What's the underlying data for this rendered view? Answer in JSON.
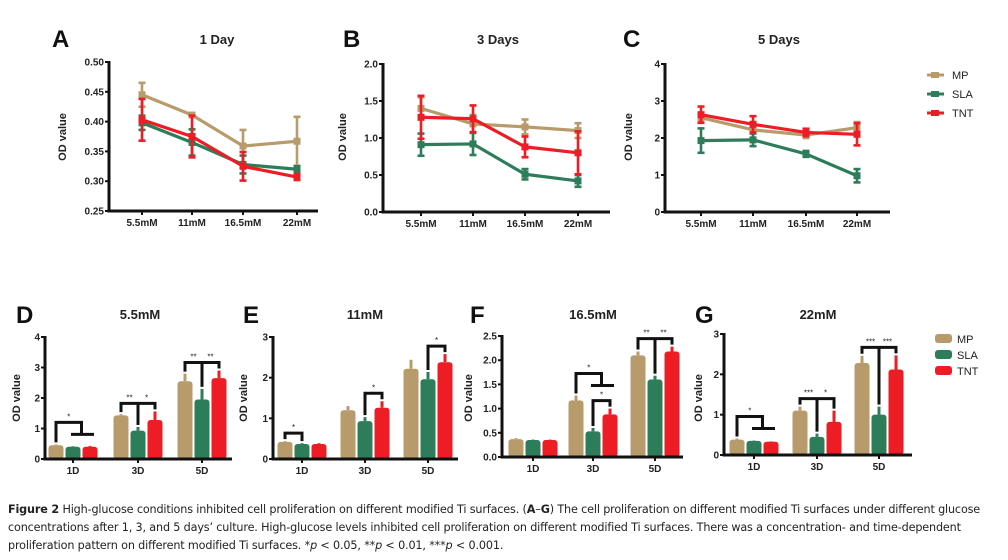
{
  "colors": {
    "MP": "#b89b6a",
    "SLA": "#2e7d5a",
    "TNT": "#ee1c24",
    "axis": "#111111"
  },
  "legend_line": {
    "items": [
      "MP",
      "SLA",
      "TNT"
    ]
  },
  "legend_bar": {
    "items": [
      "MP",
      "SLA",
      "TNT"
    ]
  },
  "caption": {
    "label": "Figure 2",
    "text1": " High-glucose conditions inhibited cell proliferation on different modified Ti surfaces. (",
    "range_bold_a": "A",
    "dash": "–",
    "range_bold_g": "G",
    "text2": ") The cell proliferation on different modified Ti surfaces under different glucose concentrations after 1, 3, and 5 days’ culture. High-glucose levels inhibited cell proliferation on different modified Ti surfaces. There was a concentration- and time-dependent proliferation pattern on different modified Ti surfaces. ",
    "p1_stars": "*",
    "p1_rest": " < 0.05, ",
    "p2_stars": "**",
    "p2_rest": " < 0.01, ",
    "p3_stars": "***",
    "p3_rest": " < 0.001.",
    "p_symbol": "p"
  },
  "chart_data": [
    {
      "panel": "A",
      "type": "line",
      "title": "1 Day",
      "xlabel": "",
      "ylabel": "OD value",
      "categories": [
        "5.5mM",
        "11mM",
        "16.5mM",
        "22mM"
      ],
      "ylim": [
        0.25,
        0.5
      ],
      "yticks": [
        "0.25",
        "0.30",
        "0.35",
        "0.40",
        "0.45",
        "0.50"
      ],
      "ytick_values": [
        0.25,
        0.3,
        0.35,
        0.4,
        0.45,
        0.5
      ],
      "legend": "right",
      "series": [
        {
          "name": "MP",
          "values": [
            0.445,
            0.411,
            0.359,
            0.367
          ],
          "err": [
            0.02,
            0.003,
            0.027,
            0.041
          ]
        },
        {
          "name": "SLA",
          "values": [
            0.398,
            0.365,
            0.328,
            0.32
          ],
          "err": [
            0.012,
            0.022,
            0.015,
            0.005
          ]
        },
        {
          "name": "TNT",
          "values": [
            0.403,
            0.375,
            0.325,
            0.307
          ],
          "err": [
            0.035,
            0.035,
            0.024,
            0.005
          ]
        }
      ]
    },
    {
      "panel": "B",
      "type": "line",
      "title": "3 Days",
      "xlabel": "",
      "ylabel": "OD value",
      "categories": [
        "5.5mM",
        "11mM",
        "16.5mM",
        "22mM"
      ],
      "ylim": [
        0.0,
        2.0
      ],
      "yticks": [
        "0.0",
        "0.5",
        "1.0",
        "1.5",
        "2.0"
      ],
      "ytick_values": [
        0.0,
        0.5,
        1.0,
        1.5,
        2.0
      ],
      "series": [
        {
          "name": "MP",
          "values": [
            1.4,
            1.19,
            1.15,
            1.1
          ],
          "err": [
            0.15,
            0.12,
            0.1,
            0.1
          ]
        },
        {
          "name": "SLA",
          "values": [
            0.91,
            0.92,
            0.51,
            0.42
          ],
          "err": [
            0.15,
            0.15,
            0.07,
            0.08
          ]
        },
        {
          "name": "TNT",
          "values": [
            1.28,
            1.26,
            0.88,
            0.8
          ],
          "err": [
            0.29,
            0.18,
            0.14,
            0.29
          ]
        }
      ]
    },
    {
      "panel": "C",
      "type": "line",
      "title": "5 Days",
      "xlabel": "",
      "ylabel": "OD value",
      "categories": [
        "5.5mM",
        "11mM",
        "16.5mM",
        "22mM"
      ],
      "ylim": [
        0,
        4
      ],
      "yticks": [
        "0",
        "1",
        "2",
        "3",
        "4"
      ],
      "ytick_values": [
        0,
        1,
        2,
        3,
        4
      ],
      "series": [
        {
          "name": "MP",
          "values": [
            2.55,
            2.22,
            2.08,
            2.28
          ],
          "err": [
            0.1,
            0.08,
            0.08,
            0.15
          ]
        },
        {
          "name": "SLA",
          "values": [
            1.93,
            1.95,
            1.57,
            0.98
          ],
          "err": [
            0.33,
            0.17,
            0.08,
            0.18
          ]
        },
        {
          "name": "TNT",
          "values": [
            2.63,
            2.37,
            2.15,
            2.1
          ],
          "err": [
            0.22,
            0.22,
            0.1,
            0.3
          ]
        }
      ]
    },
    {
      "panel": "D",
      "type": "bar",
      "title": "5.5mM",
      "xlabel": "",
      "ylabel": "OD value",
      "categories": [
        "1D",
        "3D",
        "5D"
      ],
      "ylim": [
        0,
        4
      ],
      "yticks": [
        "0",
        "1",
        "2",
        "3",
        "4"
      ],
      "ytick_values": [
        0,
        1,
        2,
        3,
        4
      ],
      "series": [
        {
          "name": "MP",
          "values": [
            0.45,
            1.43,
            2.55
          ],
          "err": [
            0.03,
            0.04,
            0.25
          ]
        },
        {
          "name": "SLA",
          "values": [
            0.4,
            0.93,
            1.95
          ],
          "err": [
            0.02,
            0.12,
            0.35
          ]
        },
        {
          "name": "TNT",
          "values": [
            0.4,
            1.28,
            2.65
          ],
          "err": [
            0.03,
            0.28,
            0.25
          ]
        }
      ],
      "significance": [
        {
          "group": "1D",
          "type": "mp-vs-rest",
          "label": "*"
        },
        {
          "group": "3D",
          "type": "both",
          "labels": [
            "**",
            "*"
          ]
        },
        {
          "group": "5D",
          "type": "both",
          "labels": [
            "**",
            "**"
          ]
        }
      ]
    },
    {
      "panel": "E",
      "type": "bar",
      "title": "11mM",
      "xlabel": "",
      "ylabel": "OD value",
      "categories": [
        "1D",
        "3D",
        "5D"
      ],
      "ylim": [
        0,
        3
      ],
      "yticks": [
        "0",
        "1",
        "2",
        "3"
      ],
      "ytick_values": [
        0,
        1,
        2,
        3
      ],
      "series": [
        {
          "name": "MP",
          "values": [
            0.42,
            1.2,
            2.22
          ],
          "err": [
            0.02,
            0.1,
            0.22
          ]
        },
        {
          "name": "SLA",
          "values": [
            0.37,
            0.93,
            1.96
          ],
          "err": [
            0.02,
            0.1,
            0.18
          ]
        },
        {
          "name": "TNT",
          "values": [
            0.37,
            1.26,
            2.38
          ],
          "err": [
            0.02,
            0.16,
            0.2
          ]
        }
      ],
      "significance": [
        {
          "group": "1D",
          "type": "mp-sla",
          "label": "*"
        },
        {
          "group": "3D",
          "type": "sla-tnt",
          "label": "*"
        },
        {
          "group": "5D",
          "type": "sla-tnt",
          "label": "*"
        }
      ]
    },
    {
      "panel": "F",
      "type": "bar",
      "title": "16.5mM",
      "xlabel": "",
      "ylabel": "OD value",
      "categories": [
        "1D",
        "3D",
        "5D"
      ],
      "ylim": [
        0.0,
        2.5
      ],
      "yticks": [
        "0.0",
        "0.5",
        "1.0",
        "1.5",
        "2.0",
        "2.5"
      ],
      "ytick_values": [
        0.0,
        0.5,
        1.0,
        1.5,
        2.0,
        2.5
      ],
      "series": [
        {
          "name": "MP",
          "values": [
            0.37,
            1.17,
            2.1
          ],
          "err": [
            0.02,
            0.1,
            0.08
          ]
        },
        {
          "name": "SLA",
          "values": [
            0.35,
            0.53,
            1.6
          ],
          "err": [
            0.01,
            0.07,
            0.08
          ]
        },
        {
          "name": "TNT",
          "values": [
            0.35,
            0.88,
            2.18
          ],
          "err": [
            0.01,
            0.12,
            0.1
          ]
        }
      ],
      "significance": [
        {
          "group": "3D",
          "type": "mp-vs-rest",
          "label": "*"
        },
        {
          "group": "3D",
          "type": "sla-tnt",
          "label": "*"
        },
        {
          "group": "5D",
          "type": "both",
          "labels": [
            "**",
            "**"
          ]
        }
      ]
    },
    {
      "panel": "G",
      "type": "bar",
      "title": "22mM",
      "xlabel": "",
      "ylabel": "OD value",
      "categories": [
        "1D",
        "3D",
        "5D"
      ],
      "ylim": [
        0,
        3
      ],
      "yticks": [
        "0",
        "1",
        "2",
        "3"
      ],
      "ytick_values": [
        0,
        1,
        2,
        3
      ],
      "series": [
        {
          "name": "MP",
          "values": [
            0.38,
            1.1,
            2.28
          ],
          "err": [
            0.03,
            0.1,
            0.18
          ]
        },
        {
          "name": "SLA",
          "values": [
            0.35,
            0.45,
            1.0
          ],
          "err": [
            0.01,
            0.08,
            0.2
          ]
        },
        {
          "name": "TNT",
          "values": [
            0.33,
            0.82,
            2.12
          ],
          "err": [
            0.01,
            0.28,
            0.35
          ]
        }
      ],
      "significance": [
        {
          "group": "1D",
          "type": "mp-vs-rest",
          "label": "*"
        },
        {
          "group": "3D",
          "type": "both",
          "labels": [
            "***",
            "*"
          ]
        },
        {
          "group": "5D",
          "type": "both",
          "labels": [
            "***",
            "***"
          ]
        }
      ]
    }
  ]
}
